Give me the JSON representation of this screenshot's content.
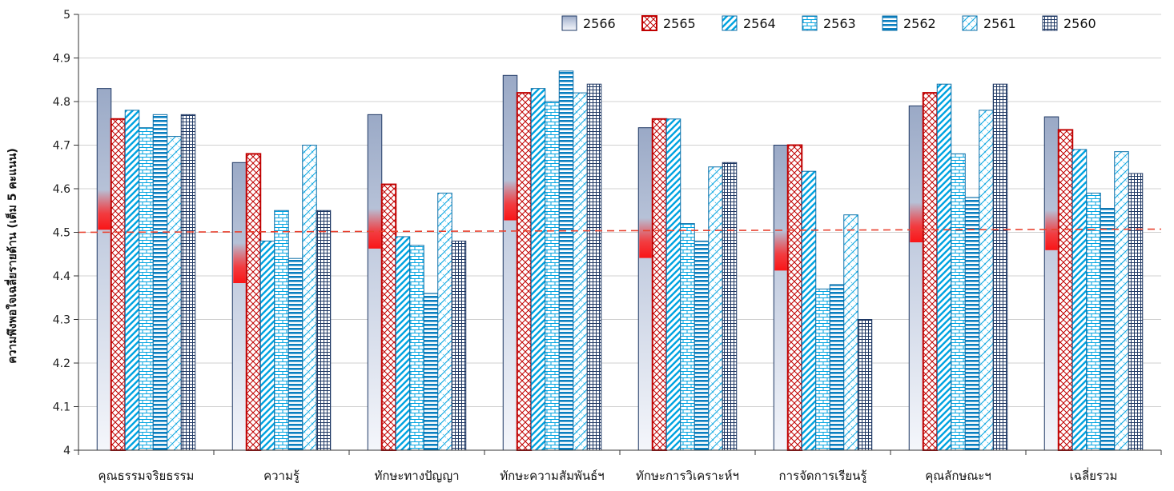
{
  "chart_data": {
    "type": "bar",
    "ylabel": "ความพึงพอใจเฉลี่ยรายด้าน (เต็ม 5 คะแนน)",
    "ylim": [
      4,
      5
    ],
    "yticks": [
      "4",
      "4.1",
      "4.2",
      "4.3",
      "4.4",
      "4.5",
      "4.6",
      "4.7",
      "4.8",
      "4.9",
      "5"
    ],
    "categories": [
      "คุณธรรมจริยธรรม",
      "ความรู้",
      "ทักษะทางปัญญา",
      "ทักษะความสัมพันธ์ฯ",
      "ทักษะการวิเคราะห์ฯ",
      "การจัดการเรียนรู้",
      "คุณลักษณะฯ",
      "เฉลี่ยรวม"
    ],
    "grid": true,
    "legend_position": "top-right",
    "reference_line": {
      "value": 4.5,
      "color": "#e8412f",
      "style": "dashed"
    },
    "series": [
      {
        "name": "2566",
        "color": "#1f3864",
        "pattern": "gradient",
        "values": [
          4.83,
          4.66,
          4.77,
          4.86,
          4.74,
          4.7,
          4.79,
          4.765
        ]
      },
      {
        "name": "2565",
        "color": "#c00000",
        "pattern": "crosshatch",
        "values": [
          4.76,
          4.68,
          4.61,
          4.82,
          4.76,
          4.7,
          4.82,
          4.735
        ]
      },
      {
        "name": "2564",
        "color": "#00a3e0",
        "pattern": "diagonal",
        "values": [
          4.78,
          4.48,
          4.49,
          4.83,
          4.76,
          4.64,
          4.84,
          4.69
        ]
      },
      {
        "name": "2563",
        "color": "#00a3e0",
        "pattern": "brick",
        "values": [
          4.74,
          4.55,
          4.47,
          4.8,
          4.52,
          4.37,
          4.68,
          4.59
        ]
      },
      {
        "name": "2562",
        "color": "#00a3e0",
        "pattern": "hstripe",
        "values": [
          4.77,
          4.44,
          4.36,
          4.87,
          4.48,
          4.38,
          4.58,
          4.555
        ]
      },
      {
        "name": "2561",
        "color": "#00a3e0",
        "pattern": "diagcross",
        "values": [
          4.72,
          4.7,
          4.59,
          4.82,
          4.65,
          4.54,
          4.78,
          4.685
        ]
      },
      {
        "name": "2560",
        "color": "#1f3864",
        "pattern": "grid",
        "values": [
          4.77,
          4.55,
          4.48,
          4.84,
          4.66,
          4.3,
          4.84,
          4.635
        ]
      }
    ]
  }
}
